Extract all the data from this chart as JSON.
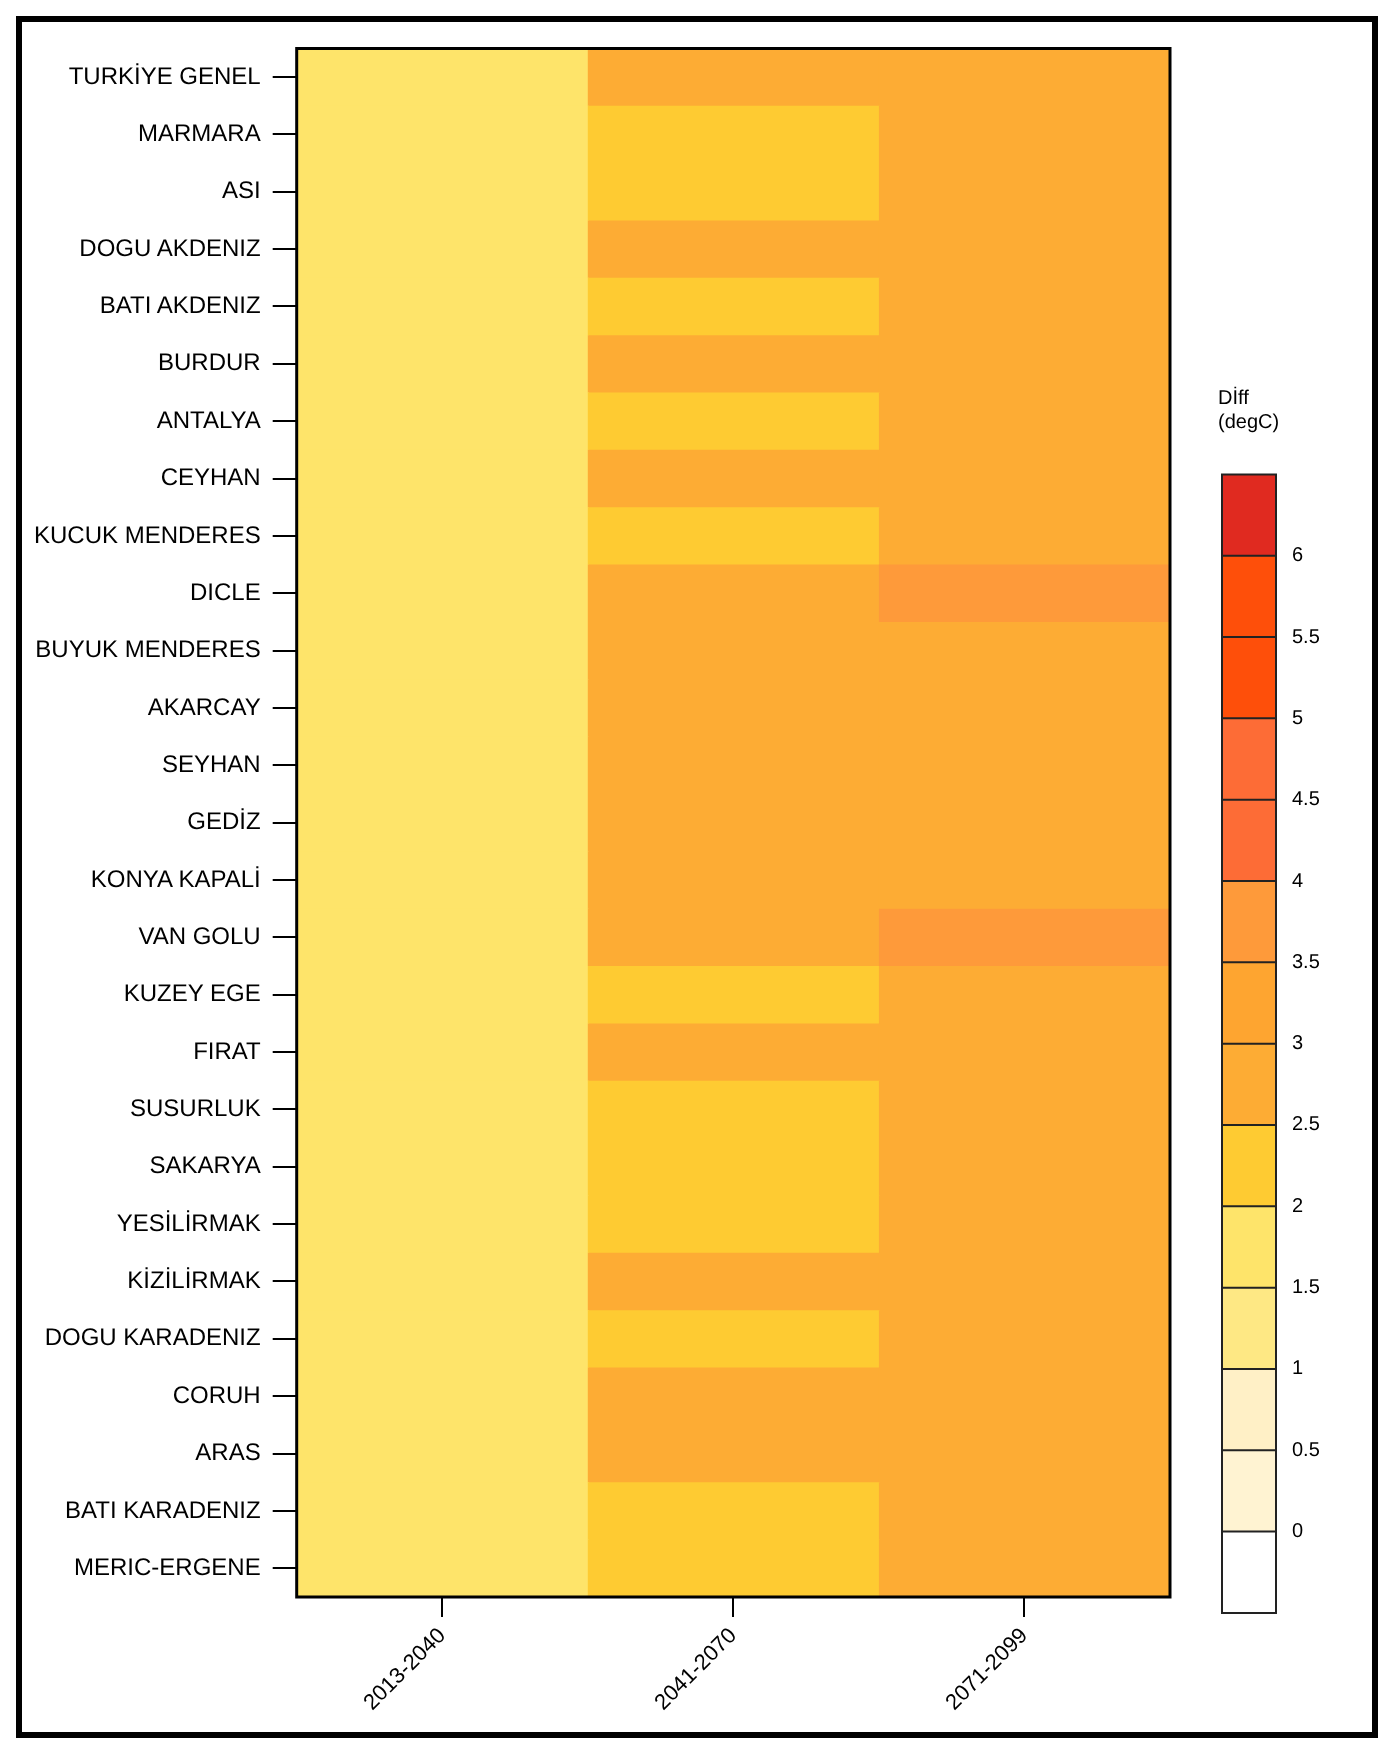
{
  "chart_data": {
    "type": "heatmap",
    "clabel": "Dİff\n(degC)",
    "categories": [
      "2013-2040",
      "2041-2070",
      "2071-2099"
    ],
    "y_categories": [
      "TURKİYE GENEL",
      "MARMARA",
      "ASI",
      "DOGU AKDENIZ",
      "BATI AKDENIZ",
      "BURDUR",
      "ANTALYA",
      "CEYHAN",
      "KUCUK MENDERES",
      "DICLE",
      "BUYUK MENDERES",
      "AKARCAY",
      "SEYHAN",
      "GEDİZ",
      "KONYA KAPALİ",
      "VAN GOLU",
      "KUZEY EGE",
      "FIRAT",
      "SUSURLUK",
      "SAKARYA",
      "YESİLİRMAK",
      "KİZİLİRMAK",
      "DOGU KARADENIZ",
      "CORUH",
      "ARAS",
      "BATI KARADENIZ",
      "MERIC-ERGENE"
    ],
    "cells": [
      [
        1.75,
        2.75,
        2.75
      ],
      [
        1.75,
        2.25,
        2.75
      ],
      [
        1.75,
        2.25,
        2.75
      ],
      [
        1.75,
        2.75,
        2.75
      ],
      [
        1.75,
        2.25,
        2.75
      ],
      [
        1.75,
        2.75,
        2.75
      ],
      [
        1.75,
        2.25,
        2.75
      ],
      [
        1.75,
        2.75,
        2.75
      ],
      [
        1.75,
        2.25,
        2.75
      ],
      [
        1.75,
        2.75,
        3.75
      ],
      [
        1.75,
        2.75,
        2.75
      ],
      [
        1.75,
        2.75,
        2.75
      ],
      [
        1.75,
        2.75,
        2.75
      ],
      [
        1.75,
        2.75,
        2.75
      ],
      [
        1.75,
        2.75,
        2.75
      ],
      [
        1.75,
        2.75,
        3.75
      ],
      [
        1.75,
        2.25,
        2.75
      ],
      [
        1.75,
        2.75,
        2.75
      ],
      [
        1.75,
        2.25,
        2.75
      ],
      [
        1.75,
        2.25,
        2.75
      ],
      [
        1.75,
        2.25,
        2.75
      ],
      [
        1.75,
        2.75,
        2.75
      ],
      [
        1.75,
        2.25,
        2.75
      ],
      [
        1.75,
        2.75,
        2.75
      ],
      [
        1.75,
        2.75,
        2.75
      ],
      [
        1.75,
        2.25,
        2.75
      ],
      [
        1.75,
        2.25,
        2.75
      ]
    ],
    "clim": [
      -0.5,
      6.5
    ],
    "cticks": [
      0,
      0.5,
      1,
      1.5,
      2,
      2.5,
      3,
      3.5,
      4,
      4.5,
      5,
      5.5,
      6
    ],
    "colors": [
      "#ffffff",
      "#fff3d2",
      "#fff0c6",
      "#fee884",
      "#fee46a",
      "#fecb32",
      "#fdac34",
      "#fea530",
      "#fe9a3a",
      "#fd6c36",
      "#fd6c36",
      "#fe4f0a",
      "#fe4f0a",
      "#e02a20"
    ]
  }
}
